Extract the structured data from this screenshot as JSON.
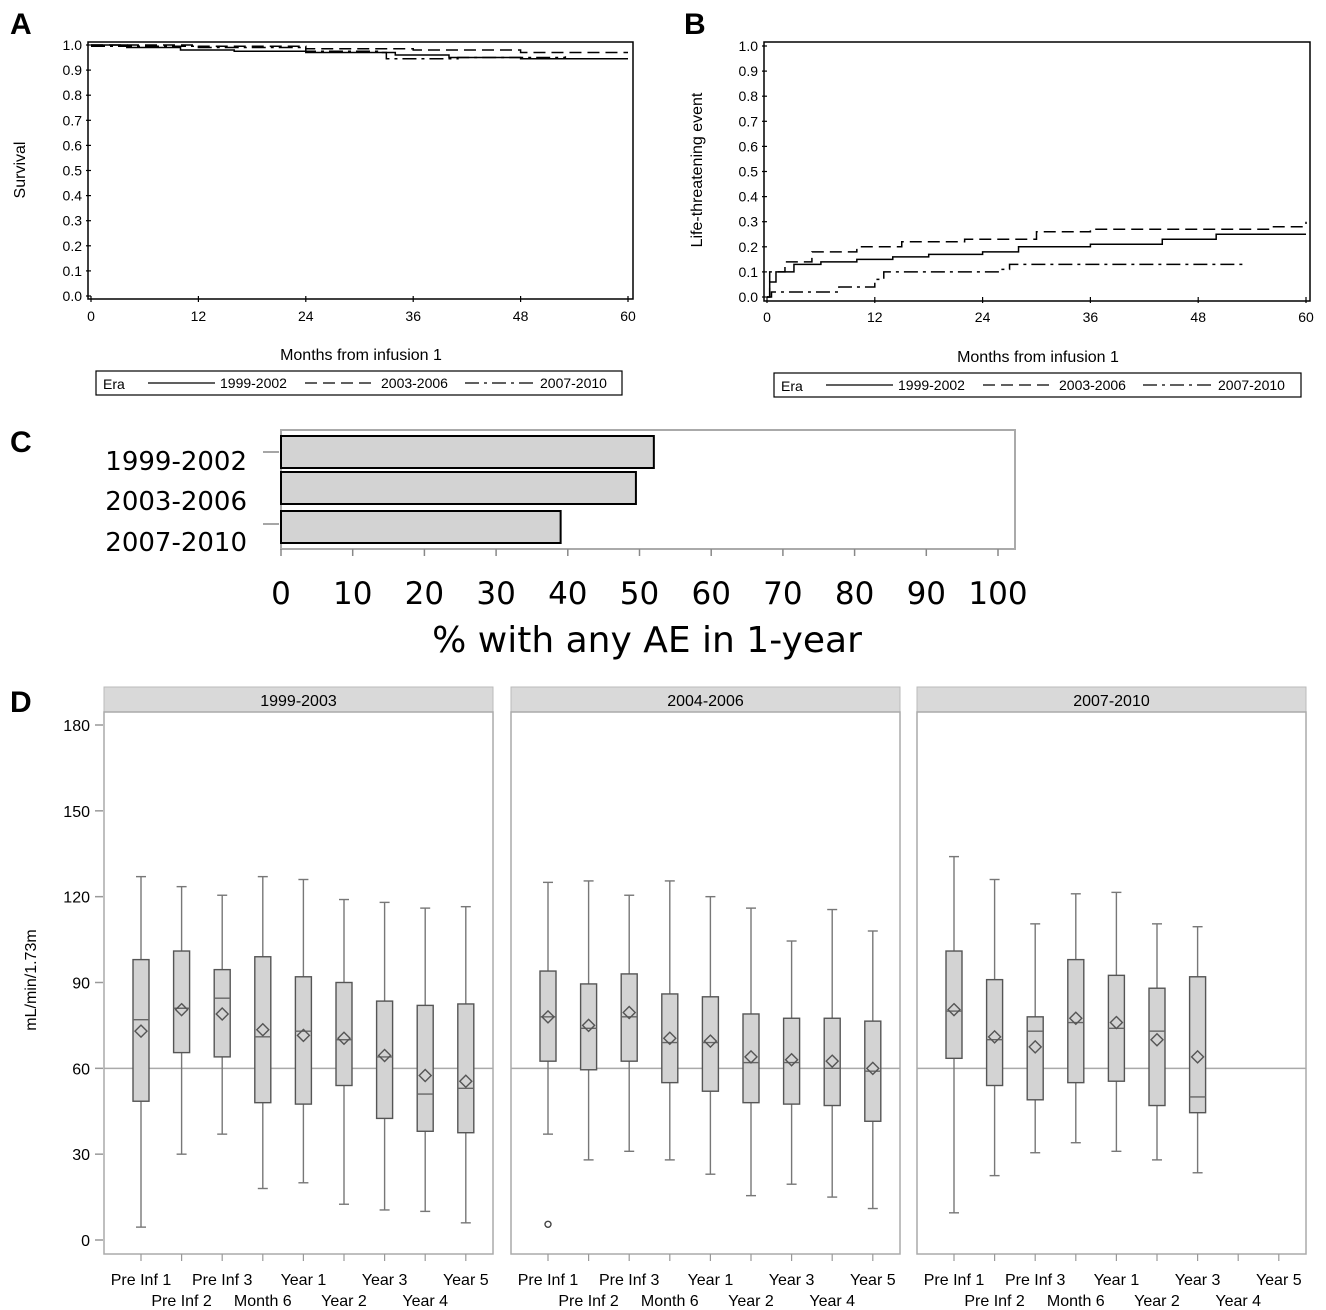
{
  "chart_data": [
    {
      "panel": "A",
      "type": "line",
      "xlabel": "Months from infusion 1",
      "ylabel": "Survival",
      "xlim": [
        0,
        60
      ],
      "ylim": [
        0,
        1
      ],
      "xticks": [
        "0",
        "12",
        "24",
        "36",
        "48",
        "60"
      ],
      "yticks": [
        "0.0",
        "0.1",
        "0.2",
        "0.3",
        "0.4",
        "0.5",
        "0.6",
        "0.7",
        "0.8",
        "0.9",
        "1.0"
      ],
      "legend": {
        "title": "Era",
        "placement": "bottom"
      },
      "series": [
        {
          "name": "1999-2002",
          "style": "solid",
          "points": [
            [
              0,
              1.0
            ],
            [
              4,
              0.99
            ],
            [
              10,
              0.98
            ],
            [
              16,
              0.975
            ],
            [
              24,
              0.97
            ],
            [
              34,
              0.96
            ],
            [
              40,
              0.95
            ],
            [
              48,
              0.945
            ],
            [
              60,
              0.945
            ]
          ]
        },
        {
          "name": "2003-2006",
          "style": "dash",
          "points": [
            [
              0,
              1.0
            ],
            [
              12,
              0.995
            ],
            [
              24,
              0.985
            ],
            [
              36,
              0.98
            ],
            [
              48,
              0.97
            ],
            [
              60,
              0.97
            ]
          ]
        },
        {
          "name": "2007-2010",
          "style": "dashdot",
          "points": [
            [
              0,
              0.995
            ],
            [
              12,
              0.99
            ],
            [
              24,
              0.975
            ],
            [
              32,
              0.97
            ],
            [
              33,
              0.945
            ],
            [
              40,
              0.945
            ],
            [
              41,
              0.95
            ],
            [
              52,
              0.95
            ],
            [
              53,
              0.955
            ]
          ]
        }
      ]
    },
    {
      "panel": "B",
      "type": "line",
      "xlabel": "Months from infusion 1",
      "ylabel": "Life-threatening event",
      "xlim": [
        0,
        60
      ],
      "ylim": [
        0,
        1
      ],
      "xticks": [
        "0",
        "12",
        "24",
        "36",
        "48",
        "60"
      ],
      "yticks": [
        "0.0",
        "0.1",
        "0.2",
        "0.3",
        "0.4",
        "0.5",
        "0.6",
        "0.7",
        "0.8",
        "0.9",
        "1.0"
      ],
      "legend": {
        "title": "Era",
        "placement": "bottom"
      },
      "series": [
        {
          "name": "1999-2002",
          "style": "solid",
          "points": [
            [
              0,
              0.0
            ],
            [
              0.3,
              0.06
            ],
            [
              1,
              0.1
            ],
            [
              3,
              0.13
            ],
            [
              6,
              0.14
            ],
            [
              10,
              0.15
            ],
            [
              14,
              0.16
            ],
            [
              18,
              0.17
            ],
            [
              24,
              0.18
            ],
            [
              28,
              0.2
            ],
            [
              36,
              0.21
            ],
            [
              44,
              0.23
            ],
            [
              50,
              0.25
            ],
            [
              60,
              0.25
            ]
          ]
        },
        {
          "name": "2003-2006",
          "style": "dash",
          "points": [
            [
              0,
              0.0
            ],
            [
              0.3,
              0.1
            ],
            [
              2,
              0.14
            ],
            [
              5,
              0.18
            ],
            [
              10,
              0.2
            ],
            [
              15,
              0.22
            ],
            [
              22,
              0.23
            ],
            [
              30,
              0.26
            ],
            [
              36,
              0.27
            ],
            [
              48,
              0.27
            ],
            [
              56,
              0.28
            ],
            [
              59,
              0.28
            ],
            [
              60,
              0.3
            ]
          ]
        },
        {
          "name": "2007-2010",
          "style": "dashdot",
          "points": [
            [
              0,
              0.0
            ],
            [
              0.5,
              0.02
            ],
            [
              4,
              0.02
            ],
            [
              8,
              0.04
            ],
            [
              12,
              0.07
            ],
            [
              13,
              0.1
            ],
            [
              26,
              0.11
            ],
            [
              27,
              0.13
            ],
            [
              40,
              0.13
            ],
            [
              53,
              0.13
            ]
          ]
        }
      ]
    },
    {
      "panel": "C",
      "type": "bar",
      "orientation": "horizontal",
      "categories": [
        "1999-2002",
        "2003-2006",
        "2007-2010"
      ],
      "values": [
        52,
        49.5,
        39
      ],
      "xlabel": "% with any AE in 1-year",
      "xlim": [
        0,
        100
      ],
      "xticks": [
        "0",
        "10",
        "20",
        "30",
        "40",
        "50",
        "60",
        "70",
        "80",
        "90",
        "100"
      ],
      "colors": {
        "bar": "#d3d3d3",
        "frame": "#aaaaaa"
      }
    },
    {
      "panel": "D",
      "type": "box",
      "ylabel": "mL/min/1.73m",
      "ylim": [
        0,
        180
      ],
      "yticks": [
        "0",
        "30",
        "60",
        "90",
        "120",
        "150",
        "180"
      ],
      "reference_line": 60,
      "categories": [
        "Pre Inf 1",
        "Pre Inf 2",
        "Pre Inf 3",
        "Month 6",
        "Year 1",
        "Year 2",
        "Year 3",
        "Year 4",
        "Year 5"
      ],
      "colors": {
        "box": "#d3d3d3",
        "strip": "#d9d9d9",
        "refline": "#aaaaaa"
      },
      "facets": [
        {
          "name": "1999-2003",
          "boxes": [
            {
              "min": 4.5,
              "q1": 48.5,
              "median": 77,
              "q3": 98,
              "max": 127,
              "mean": 73
            },
            {
              "min": 30,
              "q1": 65.5,
              "median": 81,
              "q3": 101,
              "max": 123.5,
              "mean": 80.5
            },
            {
              "min": 37,
              "q1": 64,
              "median": 84.5,
              "q3": 94.5,
              "max": 120.5,
              "mean": 79
            },
            {
              "min": 18,
              "q1": 48,
              "median": 71,
              "q3": 99,
              "max": 127,
              "mean": 73.5
            },
            {
              "min": 20,
              "q1": 47.5,
              "median": 73,
              "q3": 92,
              "max": 126,
              "mean": 71.5
            },
            {
              "min": 12.5,
              "q1": 54,
              "median": 70,
              "q3": 90,
              "max": 119,
              "mean": 70.5
            },
            {
              "min": 10.5,
              "q1": 42.5,
              "median": 64,
              "q3": 83.5,
              "max": 118,
              "mean": 64.5
            },
            {
              "min": 10,
              "q1": 38,
              "median": 51,
              "q3": 82,
              "max": 116,
              "mean": 57.5
            },
            {
              "min": 6,
              "q1": 37.5,
              "median": 53,
              "q3": 82.5,
              "max": 116.5,
              "mean": 55.5
            }
          ]
        },
        {
          "name": "2004-2006",
          "boxes": [
            {
              "min": 37,
              "q1": 62.5,
              "median": 78,
              "q3": 94,
              "max": 125,
              "mean": 78,
              "outliers": [
                5.5
              ]
            },
            {
              "min": 28,
              "q1": 59.5,
              "median": 74,
              "q3": 89.5,
              "max": 125.5,
              "mean": 75
            },
            {
              "min": 31,
              "q1": 62.5,
              "median": 78,
              "q3": 93,
              "max": 120.5,
              "mean": 79.5
            },
            {
              "min": 28,
              "q1": 55,
              "median": 69,
              "q3": 86,
              "max": 125.5,
              "mean": 70.5
            },
            {
              "min": 23,
              "q1": 52,
              "median": 69,
              "q3": 85,
              "max": 120,
              "mean": 69.5
            },
            {
              "min": 15.5,
              "q1": 48,
              "median": 62,
              "q3": 79,
              "max": 116,
              "mean": 64
            },
            {
              "min": 19.5,
              "q1": 47.5,
              "median": 62,
              "q3": 77.5,
              "max": 104.5,
              "mean": 63
            },
            {
              "min": 15,
              "q1": 47,
              "median": 60,
              "q3": 77.5,
              "max": 115.5,
              "mean": 62.5
            },
            {
              "min": 11,
              "q1": 41.5,
              "median": 59,
              "q3": 76.5,
              "max": 108,
              "mean": 60
            }
          ]
        },
        {
          "name": "2007-2010",
          "boxes": [
            {
              "min": 9.5,
              "q1": 63.5,
              "median": 80,
              "q3": 101,
              "max": 134,
              "mean": 80.5
            },
            {
              "min": 22.5,
              "q1": 54,
              "median": 70,
              "q3": 91,
              "max": 126,
              "mean": 71
            },
            {
              "min": 30.5,
              "q1": 49,
              "median": 73,
              "q3": 78,
              "max": 110.5,
              "mean": 67.5
            },
            {
              "min": 34,
              "q1": 55,
              "median": 76,
              "q3": 98,
              "max": 121,
              "mean": 77.5
            },
            {
              "min": 31,
              "q1": 55.5,
              "median": 74,
              "q3": 92.5,
              "max": 121.5,
              "mean": 76
            },
            {
              "min": 28,
              "q1": 47,
              "median": 73,
              "q3": 88,
              "max": 110.5,
              "mean": 70
            },
            {
              "min": 23.5,
              "q1": 44.5,
              "median": 50,
              "q3": 92,
              "max": 109.5,
              "mean": 64
            }
          ]
        }
      ]
    }
  ]
}
